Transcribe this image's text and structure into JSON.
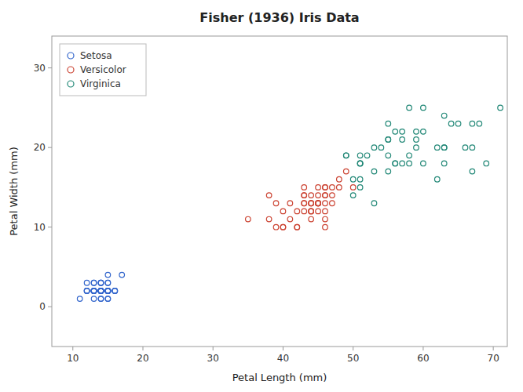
{
  "chart_data": {
    "type": "scatter",
    "title": "Fisher (1936) Iris Data",
    "x_label": "Petal Length (mm)",
    "y_label": "Petal Width (mm)",
    "xlim": [
      7,
      72
    ],
    "ylim": [
      -5,
      34
    ],
    "xticks": [
      10,
      20,
      30,
      40,
      50,
      60,
      70
    ],
    "yticks": [
      0,
      10,
      20,
      30
    ],
    "grid": false,
    "legend": "upper left",
    "marker": "circle-open",
    "series": [
      {
        "name": "Setosa",
        "color": "#3366CC",
        "x": [
          14,
          14,
          13,
          15,
          14,
          17,
          14,
          15,
          14,
          15,
          15,
          16,
          14,
          11,
          12,
          15,
          14,
          13,
          15,
          13,
          15,
          13,
          13,
          12,
          13,
          14,
          15,
          14,
          16,
          14,
          15,
          12,
          14,
          16,
          15,
          14,
          15,
          14,
          13,
          15,
          13,
          14,
          15,
          14,
          15,
          12,
          13,
          13,
          14,
          13
        ],
        "values": [
          2,
          2,
          2,
          2,
          2,
          4,
          3,
          2,
          2,
          1,
          2,
          2,
          1,
          1,
          2,
          4,
          2,
          1,
          2,
          2,
          3,
          2,
          3,
          3,
          2,
          3,
          3,
          2,
          2,
          2,
          2,
          2,
          2,
          2,
          2,
          3,
          2,
          1,
          2,
          2,
          2,
          2,
          1,
          2,
          2,
          2,
          3,
          2,
          2,
          2
        ]
      },
      {
        "name": "Versicolor",
        "color": "#CC4433",
        "x": [
          47,
          43,
          46,
          39,
          48,
          45,
          43,
          42,
          44,
          46,
          45,
          46,
          40,
          39,
          44,
          46,
          47,
          42,
          43,
          46,
          44,
          42,
          45,
          46,
          44,
          41,
          44,
          45,
          45,
          44,
          41,
          45,
          44,
          45,
          43,
          40,
          49,
          40,
          46,
          47,
          44,
          43,
          48,
          50,
          45,
          35,
          46,
          38,
          43,
          38
        ],
        "values": [
          14,
          15,
          15,
          13,
          15,
          13,
          13,
          12,
          13,
          14,
          13,
          14,
          10,
          10,
          14,
          11,
          13,
          10,
          12,
          12,
          13,
          10,
          13,
          10,
          12,
          13,
          13,
          13,
          14,
          12,
          11,
          13,
          11,
          12,
          14,
          12,
          17,
          10,
          13,
          15,
          12,
          14,
          16,
          15,
          15,
          11,
          15,
          14,
          13,
          11
        ]
      },
      {
        "name": "Virginica",
        "color": "#228877",
        "x": [
          60,
          51,
          59,
          56,
          58,
          57,
          62,
          54,
          49,
          67,
          51,
          57,
          51,
          55,
          53,
          55,
          66,
          67,
          58,
          65,
          68,
          51,
          67,
          60,
          52,
          59,
          55,
          63,
          56,
          56,
          55,
          53,
          57,
          63,
          64,
          60,
          63,
          50,
          58,
          71,
          63,
          49,
          51,
          53,
          50,
          62,
          51,
          55,
          59,
          69
        ],
        "values": [
          25,
          18,
          21,
          18,
          18,
          21,
          16,
          20,
          19,
          20,
          18,
          22,
          15,
          23,
          20,
          19,
          20,
          17,
          25,
          23,
          23,
          19,
          23,
          22,
          19,
          20,
          17,
          20,
          18,
          22,
          21,
          17,
          18,
          18,
          23,
          18,
          24,
          14,
          19,
          25,
          20,
          19,
          18,
          13,
          16,
          20,
          16,
          21,
          22,
          18
        ]
      }
    ]
  }
}
